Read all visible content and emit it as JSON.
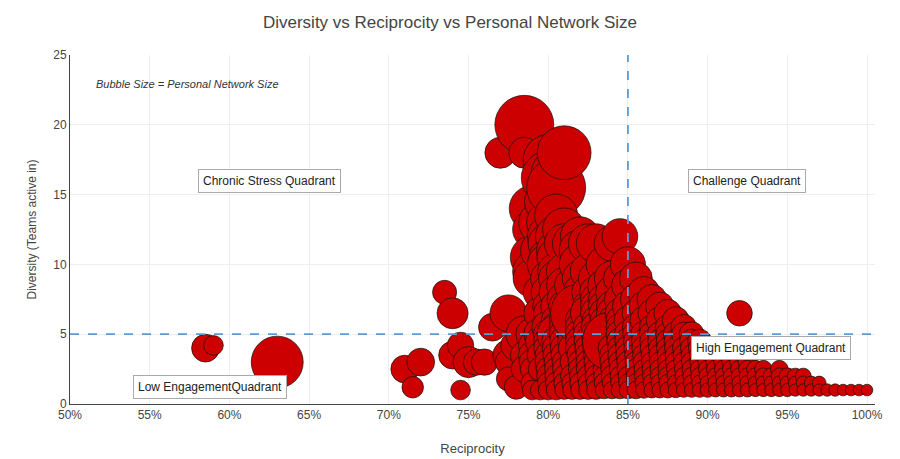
{
  "chart_data": {
    "type": "scatter",
    "title": "Diversity vs Reciprocity vs Personal Network Size",
    "x_label": "Reciprocity",
    "y_label": "Diversity (Teams active in)",
    "marker": "circle",
    "color": "#cc0000",
    "grid": true,
    "xlim": [
      0.5,
      1.005
    ],
    "ylim": [
      0,
      25
    ],
    "xticks": [
      {
        "value": 0.5,
        "label": "50%"
      },
      {
        "value": 0.55,
        "label": "55%"
      },
      {
        "value": 0.6,
        "label": "60%"
      },
      {
        "value": 0.65,
        "label": "65%"
      },
      {
        "value": 0.7,
        "label": "70%"
      },
      {
        "value": 0.75,
        "label": "75%"
      },
      {
        "value": 0.8,
        "label": "80%"
      },
      {
        "value": 0.85,
        "label": "85%"
      },
      {
        "value": 0.9,
        "label": "90%"
      },
      {
        "value": 0.95,
        "label": "95%"
      },
      {
        "value": 1.0,
        "label": "100%"
      }
    ],
    "yticks": [
      0,
      5,
      10,
      15,
      20,
      25
    ],
    "reference_lines": [
      {
        "axis": "y",
        "value": 5,
        "color": "#5b9bd5",
        "line_style": "dashed"
      },
      {
        "axis": "x",
        "value": 0.85,
        "color": "#5b9bd5",
        "line_style": "dashed"
      }
    ],
    "annotations": [
      {
        "text": "Chronic Stress Quadrant",
        "x": 0.625,
        "y": 16
      },
      {
        "text": "Challenge Quadrant",
        "x": 0.925,
        "y": 16
      },
      {
        "text": "Low EngagementQuadrant",
        "x": 0.588,
        "y": 1.2
      },
      {
        "text": "High Engagement Quadrant",
        "x": 0.94,
        "y": 4.0
      }
    ],
    "size_note": {
      "text": "Bubble Size = Personal Network Size",
      "x": 0.515,
      "y": 23.5
    },
    "x": [
      0.585,
      0.63,
      0.59,
      0.71,
      0.715,
      0.72,
      0.735,
      0.74,
      0.74,
      0.745,
      0.745,
      0.75,
      0.755,
      0.76,
      0.765,
      0.77,
      0.775,
      0.775,
      0.775,
      0.775,
      0.78,
      0.78,
      0.785,
      0.785,
      0.785,
      0.785,
      0.785,
      0.79,
      0.79,
      0.79,
      0.79,
      0.79,
      0.79,
      0.79,
      0.79,
      0.79,
      0.79,
      0.79,
      0.79,
      0.795,
      0.795,
      0.795,
      0.795,
      0.795,
      0.795,
      0.795,
      0.795,
      0.795,
      0.8,
      0.8,
      0.8,
      0.8,
      0.8,
      0.8,
      0.8,
      0.8,
      0.8,
      0.8,
      0.8,
      0.8,
      0.8,
      0.8,
      0.8,
      0.8,
      0.8,
      0.8,
      0.8,
      0.8,
      0.8,
      0.8,
      0.805,
      0.805,
      0.805,
      0.805,
      0.805,
      0.805,
      0.805,
      0.805,
      0.805,
      0.805,
      0.805,
      0.805,
      0.805,
      0.805,
      0.805,
      0.805,
      0.805,
      0.805,
      0.805,
      0.805,
      0.805,
      0.81,
      0.81,
      0.81,
      0.81,
      0.81,
      0.81,
      0.81,
      0.81,
      0.81,
      0.81,
      0.81,
      0.81,
      0.81,
      0.81,
      0.81,
      0.81,
      0.81,
      0.81,
      0.815,
      0.815,
      0.815,
      0.815,
      0.815,
      0.815,
      0.815,
      0.815,
      0.815,
      0.815,
      0.815,
      0.82,
      0.82,
      0.82,
      0.82,
      0.82,
      0.82,
      0.82,
      0.82,
      0.82,
      0.82,
      0.82,
      0.82,
      0.82,
      0.82,
      0.82,
      0.82,
      0.82,
      0.82,
      0.825,
      0.825,
      0.825,
      0.825,
      0.825,
      0.825,
      0.825,
      0.825,
      0.825,
      0.825,
      0.825,
      0.825,
      0.825,
      0.825,
      0.825,
      0.83,
      0.83,
      0.83,
      0.83,
      0.83,
      0.83,
      0.83,
      0.83,
      0.83,
      0.83,
      0.83,
      0.83,
      0.83,
      0.83,
      0.83,
      0.83,
      0.83,
      0.835,
      0.835,
      0.835,
      0.835,
      0.835,
      0.835,
      0.835,
      0.835,
      0.835,
      0.835,
      0.835,
      0.835,
      0.835,
      0.835,
      0.835,
      0.835,
      0.84,
      0.84,
      0.84,
      0.84,
      0.84,
      0.84,
      0.84,
      0.84,
      0.84,
      0.84,
      0.84,
      0.84,
      0.84,
      0.84,
      0.84,
      0.84,
      0.845,
      0.845,
      0.845,
      0.845,
      0.845,
      0.845,
      0.845,
      0.845,
      0.845,
      0.845,
      0.845,
      0.845,
      0.845,
      0.845,
      0.845,
      0.85,
      0.85,
      0.85,
      0.85,
      0.85,
      0.85,
      0.85,
      0.85,
      0.85,
      0.85,
      0.85,
      0.85,
      0.85,
      0.855,
      0.855,
      0.855,
      0.855,
      0.855,
      0.855,
      0.855,
      0.855,
      0.855,
      0.855,
      0.855,
      0.855,
      0.855,
      0.86,
      0.86,
      0.86,
      0.86,
      0.86,
      0.86,
      0.86,
      0.86,
      0.86,
      0.86,
      0.86,
      0.86,
      0.865,
      0.865,
      0.865,
      0.865,
      0.865,
      0.865,
      0.865,
      0.865,
      0.865,
      0.865,
      0.865,
      0.865,
      0.87,
      0.87,
      0.87,
      0.87,
      0.87,
      0.87,
      0.87,
      0.87,
      0.87,
      0.87,
      0.87,
      0.875,
      0.875,
      0.875,
      0.875,
      0.875,
      0.875,
      0.875,
      0.875,
      0.875,
      0.875,
      0.875,
      0.88,
      0.88,
      0.88,
      0.88,
      0.88,
      0.88,
      0.88,
      0.88,
      0.88,
      0.88,
      0.885,
      0.885,
      0.885,
      0.885,
      0.885,
      0.885,
      0.885,
      0.885,
      0.885,
      0.89,
      0.89,
      0.89,
      0.89,
      0.89,
      0.89,
      0.89,
      0.89,
      0.89,
      0.895,
      0.895,
      0.895,
      0.895,
      0.895,
      0.895,
      0.895,
      0.895,
      0.9,
      0.9,
      0.9,
      0.9,
      0.9,
      0.9,
      0.9,
      0.905,
      0.905,
      0.905,
      0.905,
      0.905,
      0.905,
      0.91,
      0.91,
      0.91,
      0.91,
      0.91,
      0.91,
      0.915,
      0.915,
      0.915,
      0.915,
      0.915,
      0.92,
      0.92,
      0.92,
      0.92,
      0.92,
      0.92,
      0.925,
      0.925,
      0.925,
      0.925,
      0.925,
      0.93,
      0.93,
      0.93,
      0.93,
      0.935,
      0.935,
      0.935,
      0.935,
      0.94,
      0.94,
      0.94,
      0.945,
      0.945,
      0.945,
      0.945,
      0.95,
      0.95,
      0.95,
      0.955,
      0.955,
      0.955,
      0.96,
      0.96,
      0.96,
      0.965,
      0.965,
      0.97,
      0.97,
      0.975,
      0.98,
      0.985,
      0.99,
      0.995,
      1.0
    ],
    "values": [
      4.0,
      3.0,
      4.2,
      2.5,
      1.2,
      3.0,
      8.0,
      6.5,
      3.5,
      4.2,
      1.0,
      3.0,
      3.0,
      3.0,
      5.5,
      18.0,
      6.5,
      3.5,
      3.0,
      1.8,
      4.2,
      1.2,
      20.0,
      5.0,
      3.5,
      2.5,
      18.0,
      14.0,
      12.5,
      10.5,
      9.5,
      9.0,
      5.0,
      4.2,
      3.5,
      3.0,
      2.5,
      1.5,
      1.0,
      13.0,
      11.0,
      8.0,
      6.5,
      5.0,
      4.5,
      3.5,
      2.5,
      1.0,
      17.5,
      16.2,
      14.5,
      13.0,
      12.0,
      11.5,
      10.5,
      10.0,
      9.0,
      8.0,
      7.0,
      6.5,
      5.5,
      5.0,
      4.5,
      4.0,
      3.5,
      3.0,
      2.5,
      2.0,
      1.5,
      1.0,
      16.5,
      15.5,
      13.5,
      12.0,
      11.0,
      10.5,
      9.5,
      9.0,
      8.0,
      7.0,
      6.0,
      5.5,
      5.0,
      4.5,
      4.0,
      3.5,
      3.0,
      2.5,
      2.0,
      1.5,
      1.0,
      18.0,
      12.5,
      11.5,
      9.5,
      8.5,
      7.5,
      7.0,
      6.0,
      5.5,
      5.0,
      4.5,
      4.0,
      3.5,
      3.0,
      2.5,
      2.0,
      1.5,
      1.0,
      11.5,
      8.5,
      7.0,
      6.0,
      5.0,
      4.5,
      4.0,
      3.0,
      2.0,
      1.5,
      1.0,
      12.0,
      11.0,
      10.0,
      9.0,
      8.0,
      7.0,
      6.5,
      6.0,
      5.5,
      5.0,
      4.5,
      4.0,
      3.5,
      3.0,
      2.5,
      2.0,
      1.5,
      1.0,
      11.5,
      9.5,
      8.0,
      7.0,
      6.5,
      5.5,
      5.0,
      4.5,
      4.0,
      3.5,
      3.0,
      2.5,
      2.0,
      1.5,
      1.0,
      11.5,
      9.0,
      8.0,
      7.5,
      7.0,
      6.5,
      6.0,
      5.5,
      5.0,
      4.5,
      4.0,
      3.5,
      3.0,
      2.5,
      2.0,
      1.5,
      1.0,
      10.0,
      8.5,
      7.5,
      7.0,
      6.5,
      6.0,
      5.5,
      5.0,
      4.5,
      4.0,
      3.5,
      3.0,
      2.5,
      2.0,
      1.5,
      1.0,
      11.5,
      9.0,
      8.0,
      7.0,
      6.5,
      6.0,
      5.5,
      5.0,
      4.5,
      4.0,
      3.5,
      3.0,
      2.5,
      2.0,
      1.5,
      1.0,
      12.0,
      9.0,
      7.5,
      6.5,
      6.0,
      5.5,
      5.0,
      4.5,
      4.0,
      3.5,
      3.0,
      2.5,
      2.0,
      1.5,
      1.0,
      10.0,
      8.5,
      7.0,
      6.0,
      5.0,
      4.5,
      4.0,
      3.5,
      3.0,
      2.5,
      2.0,
      1.5,
      1.0,
      9.0,
      7.5,
      6.5,
      5.5,
      5.0,
      4.5,
      4.0,
      3.5,
      3.0,
      2.5,
      2.0,
      1.5,
      1.0,
      8.0,
      7.0,
      6.0,
      5.0,
      4.5,
      4.0,
      3.5,
      3.0,
      2.5,
      2.0,
      1.5,
      1.0,
      7.5,
      6.5,
      5.5,
      5.0,
      4.5,
      4.0,
      3.5,
      3.0,
      2.5,
      2.0,
      1.5,
      1.0,
      7.0,
      6.0,
      5.0,
      4.5,
      4.0,
      3.5,
      3.0,
      2.5,
      2.0,
      1.5,
      1.0,
      6.5,
      5.5,
      5.0,
      4.5,
      4.0,
      3.5,
      3.0,
      2.5,
      2.0,
      1.5,
      1.0,
      6.0,
      5.0,
      4.5,
      4.0,
      3.5,
      3.0,
      2.5,
      2.0,
      1.5,
      1.0,
      5.5,
      5.0,
      4.0,
      3.5,
      3.0,
      2.5,
      2.0,
      1.5,
      1.0,
      5.0,
      4.5,
      4.0,
      3.5,
      3.0,
      2.5,
      2.0,
      1.5,
      1.0,
      4.5,
      4.0,
      3.5,
      3.0,
      2.5,
      2.0,
      1.5,
      1.0,
      4.0,
      3.5,
      3.0,
      2.5,
      2.0,
      1.5,
      1.0,
      3.5,
      3.0,
      2.5,
      2.0,
      1.5,
      1.0,
      3.5,
      3.0,
      2.5,
      2.0,
      1.5,
      1.0,
      3.0,
      2.5,
      2.0,
      1.5,
      1.0,
      6.5,
      3.0,
      2.5,
      2.0,
      1.5,
      1.0,
      3.0,
      2.5,
      2.0,
      1.5,
      1.0,
      2.5,
      2.0,
      1.5,
      1.0,
      2.5,
      2.0,
      1.5,
      1.0,
      2.0,
      1.5,
      1.0,
      2.5,
      2.0,
      1.5,
      1.0,
      2.0,
      1.5,
      1.0,
      2.0,
      1.5,
      1.0,
      2.0,
      1.5,
      1.0,
      1.5,
      1.0,
      1.5,
      1.0,
      1.0,
      1.0,
      1.0,
      1.0,
      1.0,
      1.0
    ],
    "sizes": [
      200,
      700,
      100,
      200,
      120,
      200,
      150,
      250,
      200,
      180,
      100,
      250,
      180,
      180,
      200,
      250,
      350,
      250,
      180,
      150,
      250,
      150,
      900,
      350,
      200,
      180,
      250,
      550,
      400,
      500,
      400,
      380,
      280,
      200,
      200,
      180,
      150,
      130,
      100,
      480,
      400,
      300,
      280,
      280,
      230,
      180,
      150,
      100,
      650,
      750,
      580,
      480,
      450,
      420,
      380,
      450,
      320,
      300,
      250,
      230,
      280,
      230,
      220,
      220,
      180,
      180,
      150,
      140,
      120,
      100,
      650,
      900,
      480,
      450,
      400,
      380,
      350,
      320,
      300,
      250,
      230,
      230,
      380,
      220,
      200,
      180,
      150,
      140,
      130,
      120,
      100,
      750,
      480,
      400,
      330,
      320,
      300,
      250,
      230,
      230,
      230,
      220,
      200,
      180,
      150,
      140,
      120,
      110,
      90,
      400,
      320,
      250,
      230,
      230,
      220,
      200,
      150,
      140,
      110,
      90,
      400,
      450,
      450,
      330,
      300,
      250,
      900,
      230,
      230,
      230,
      220,
      220,
      180,
      150,
      140,
      120,
      110,
      90,
      400,
      330,
      280,
      250,
      320,
      230,
      220,
      200,
      180,
      160,
      150,
      140,
      120,
      100,
      90,
      400,
      320,
      280,
      250,
      250,
      250,
      200,
      230,
      230,
      200,
      180,
      160,
      150,
      130,
      120,
      100,
      90,
      330,
      280,
      250,
      250,
      230,
      200,
      200,
      200,
      180,
      160,
      150,
      130,
      120,
      110,
      100,
      80,
      330,
      320,
      280,
      250,
      250,
      200,
      200,
      200,
      900,
      200,
      160,
      150,
      130,
      120,
      100,
      80,
      330,
      280,
      250,
      230,
      200,
      200,
      200,
      180,
      160,
      150,
      130,
      120,
      100,
      90,
      80,
      320,
      280,
      250,
      200,
      190,
      180,
      160,
      150,
      130,
      120,
      100,
      90,
      80,
      280,
      250,
      200,
      190,
      180,
      160,
      150,
      130,
      120,
      110,
      100,
      90,
      80,
      260,
      230,
      200,
      180,
      160,
      150,
      130,
      120,
      100,
      90,
      80,
      70,
      230,
      200,
      160,
      160,
      150,
      140,
      120,
      110,
      100,
      90,
      80,
      65,
      210,
      190,
      160,
      150,
      130,
      120,
      110,
      100,
      90,
      80,
      65,
      200,
      160,
      150,
      140,
      130,
      115,
      105,
      95,
      90,
      80,
      65,
      190,
      160,
      140,
      130,
      115,
      105,
      90,
      80,
      70,
      60,
      170,
      150,
      130,
      115,
      105,
      90,
      80,
      70,
      55,
      160,
      150,
      130,
      115,
      110,
      95,
      80,
      70,
      55,
      150,
      130,
      110,
      100,
      90,
      80,
      65,
      55,
      130,
      110,
      100,
      85,
      75,
      60,
      55,
      110,
      100,
      85,
      70,
      60,
      50,
      110,
      100,
      85,
      70,
      60,
      50,
      100,
      85,
      70,
      60,
      50,
      170,
      100,
      80,
      70,
      60,
      50,
      95,
      80,
      70,
      60,
      50,
      80,
      70,
      55,
      45,
      80,
      70,
      55,
      45,
      70,
      55,
      45,
      80,
      70,
      55,
      45,
      70,
      55,
      45,
      65,
      50,
      40,
      65,
      50,
      40,
      50,
      40,
      50,
      40,
      40,
      40,
      35,
      35,
      35,
      35
    ]
  }
}
